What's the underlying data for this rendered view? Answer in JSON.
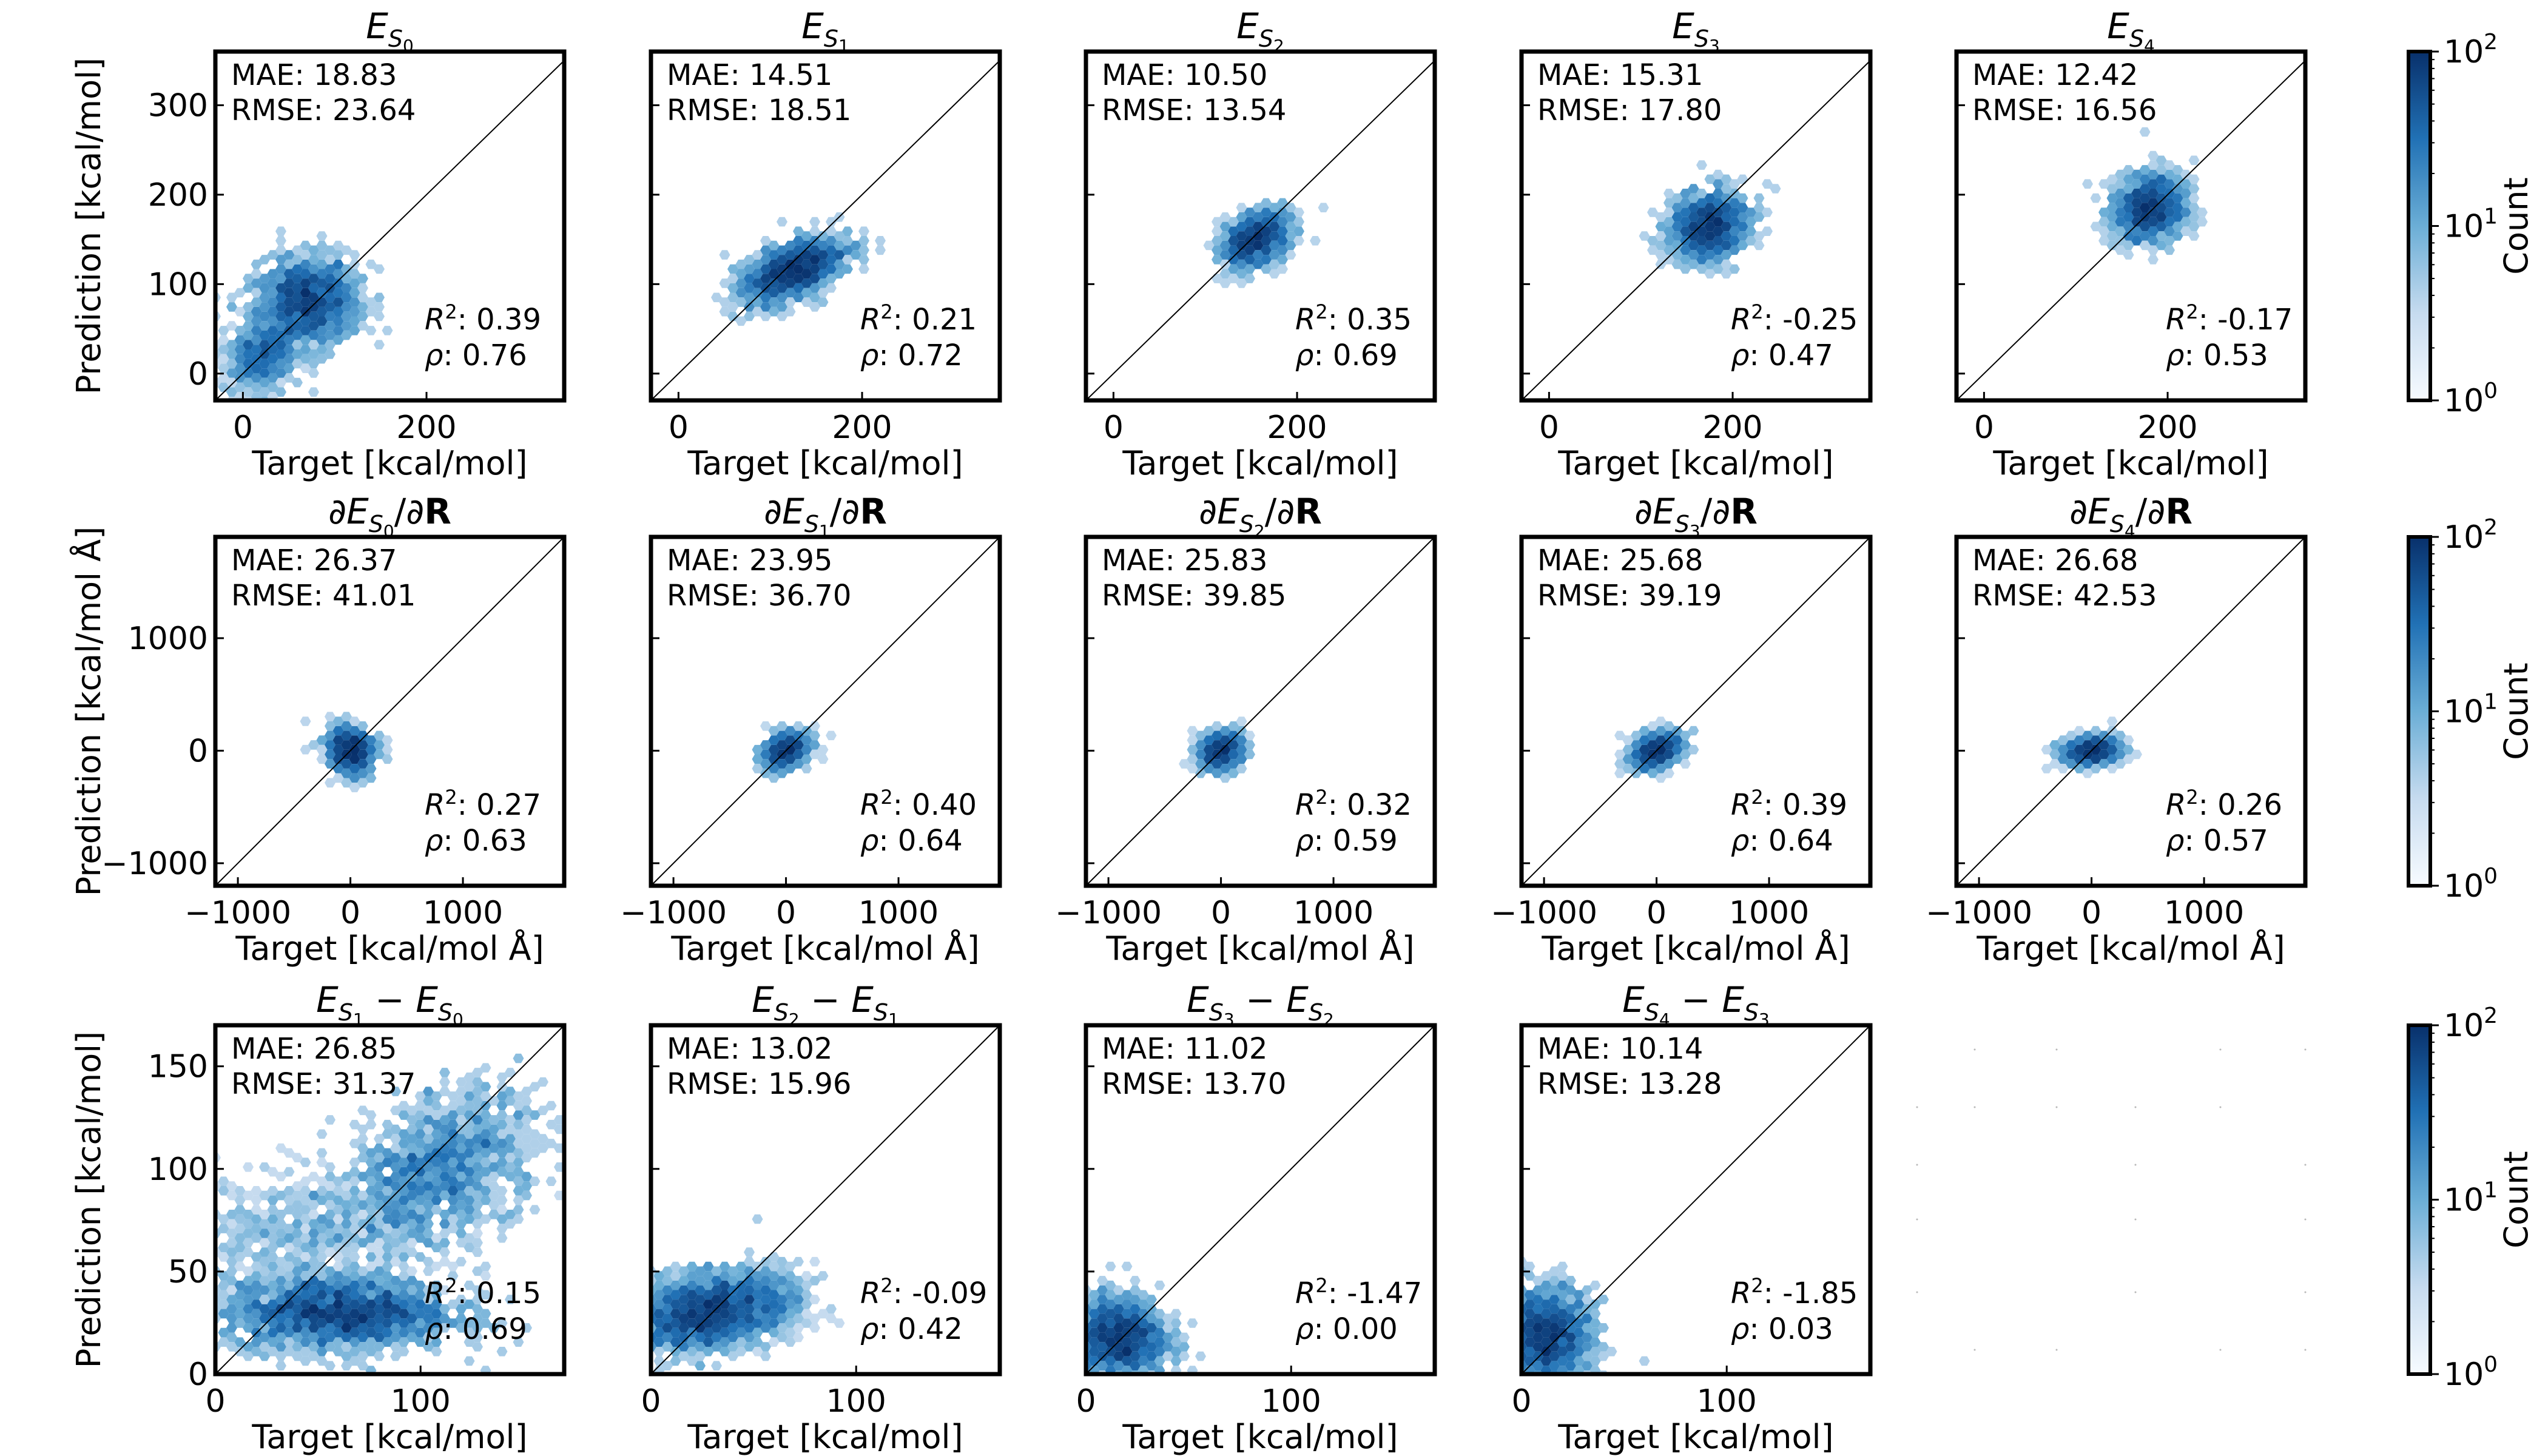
{
  "figure": {
    "colorbar_label": "Count",
    "colorbar_ticks": [
      "10",
      "10",
      "10"
    ],
    "colorbar_tick_exps": [
      "0",
      "1",
      "2"
    ],
    "colorbar_range": [
      1,
      100
    ],
    "colorbar_scale": "log",
    "colormap": [
      "#f7fbff",
      "#c6dbef",
      "#6baed6",
      "#2171b5",
      "#08306b"
    ],
    "hex_color": "#2171b5"
  },
  "rows": [
    {
      "xlabel": "Target [kcal/mol]",
      "ylabel": "Prediction [kcal/mol]",
      "xlim": [
        -30,
        350
      ],
      "ylim": [
        -30,
        360
      ],
      "xticks": [
        0,
        200
      ],
      "xtick_labels": [
        "0",
        "200"
      ],
      "yticks": [
        0,
        100,
        200,
        300
      ],
      "ytick_labels": [
        "0",
        "100",
        "200",
        "300"
      ]
    },
    {
      "xlabel": "Target [kcal/mol Å]",
      "ylabel": "Prediction [kcal/mol Å]",
      "xlim": [
        -1200,
        1900
      ],
      "ylim": [
        -1200,
        1900
      ],
      "xticks": [
        -1000,
        0,
        1000
      ],
      "xtick_labels": [
        "−1000",
        "0",
        "1000"
      ],
      "yticks": [
        -1000,
        0,
        1000
      ],
      "ytick_labels": [
        "−1000",
        "0",
        "1000"
      ]
    },
    {
      "xlabel": "Target [kcal/mol]",
      "ylabel": "Prediction [kcal/mol]",
      "xlim": [
        0,
        170
      ],
      "ylim": [
        0,
        170
      ],
      "xticks": [
        0,
        100
      ],
      "xtick_labels": [
        "0",
        "100"
      ],
      "yticks": [
        0,
        50,
        100,
        150
      ],
      "ytick_labels": [
        "0",
        "50",
        "100",
        "150"
      ]
    }
  ],
  "chart_data": [
    {
      "type": "heatmap",
      "row": 0,
      "col": 0,
      "title": "E_S0",
      "title_main": "E",
      "title_sub": "S",
      "title_subsub": "0",
      "title_pre": "",
      "title_post": "",
      "mae": "MAE: 18.83",
      "rmse": "RMSE: 23.64",
      "r2": ": 0.39",
      "rho": ": 0.76",
      "clusters": [
        {
          "cx": 70,
          "cy": 80,
          "sx": 28,
          "sy": 25,
          "rot": 0.2,
          "n": 90,
          "w": 1.0
        },
        {
          "cx": 20,
          "cy": 20,
          "sx": 22,
          "sy": 18,
          "rot": 0.8,
          "n": 50,
          "w": 0.6
        }
      ]
    },
    {
      "type": "heatmap",
      "row": 0,
      "col": 1,
      "title": "E_S1",
      "title_main": "E",
      "title_sub": "S",
      "title_subsub": "1",
      "title_pre": "",
      "title_post": "",
      "mae": "MAE: 14.51",
      "rmse": "RMSE: 18.51",
      "r2": ": 0.21",
      "rho": ": 0.72",
      "clusters": [
        {
          "cx": 125,
          "cy": 115,
          "sx": 30,
          "sy": 14,
          "rot": 0.45,
          "n": 90,
          "w": 1.0
        }
      ]
    },
    {
      "type": "heatmap",
      "row": 0,
      "col": 2,
      "title": "E_S2",
      "title_main": "E",
      "title_sub": "S",
      "title_subsub": "2",
      "title_pre": "",
      "title_post": "",
      "mae": "MAE: 10.50",
      "rmse": "RMSE: 13.54",
      "r2": ": 0.35",
      "rho": ": 0.69",
      "clusters": [
        {
          "cx": 155,
          "cy": 150,
          "sx": 20,
          "sy": 13,
          "rot": 0.6,
          "n": 80,
          "w": 1.0
        }
      ]
    },
    {
      "type": "heatmap",
      "row": 0,
      "col": 3,
      "title": "E_S3",
      "title_main": "E",
      "title_sub": "S",
      "title_subsub": "3",
      "title_pre": "",
      "title_post": "",
      "mae": "MAE: 15.31",
      "rmse": "RMSE: 17.80",
      "r2": ": -0.25",
      "rho": ": 0.47",
      "clusters": [
        {
          "cx": 175,
          "cy": 165,
          "sx": 22,
          "sy": 18,
          "rot": 0.5,
          "n": 80,
          "w": 1.0
        }
      ]
    },
    {
      "type": "heatmap",
      "row": 0,
      "col": 4,
      "title": "E_S4",
      "title_main": "E",
      "title_sub": "S",
      "title_subsub": "4",
      "title_pre": "",
      "title_post": "",
      "mae": "MAE: 12.42",
      "rmse": "RMSE: 16.56",
      "r2": ": -0.17",
      "rho": ": 0.53",
      "clusters": [
        {
          "cx": 180,
          "cy": 185,
          "sx": 20,
          "sy": 18,
          "rot": 0.5,
          "n": 80,
          "w": 1.0
        }
      ]
    },
    {
      "type": "heatmap",
      "row": 1,
      "col": 0,
      "title": "dE_S0/dR",
      "title_main": "E",
      "title_sub": "S",
      "title_subsub": "0",
      "title_pre": "∂",
      "title_post": "/∂",
      "title_bold": "R",
      "mae": "MAE: 26.37",
      "rmse": "RMSE: 41.01",
      "r2": ": 0.27",
      "rho": ": 0.63",
      "clusters": [
        {
          "cx": 0,
          "cy": 0,
          "sx": 90,
          "sy": 110,
          "rot": 0.6,
          "n": 80,
          "w": 1.0
        }
      ]
    },
    {
      "type": "heatmap",
      "row": 1,
      "col": 1,
      "title": "dE_S1/dR",
      "title_main": "E",
      "title_sub": "S",
      "title_subsub": "1",
      "title_pre": "∂",
      "title_post": "/∂",
      "title_bold": "R",
      "mae": "MAE: 23.95",
      "rmse": "RMSE: 36.70",
      "r2": ": 0.40",
      "rho": ": 0.64",
      "clusters": [
        {
          "cx": 0,
          "cy": 0,
          "sx": 100,
          "sy": 70,
          "rot": 0.5,
          "n": 80,
          "w": 1.0
        }
      ]
    },
    {
      "type": "heatmap",
      "row": 1,
      "col": 2,
      "title": "dE_S2/dR",
      "title_main": "E",
      "title_sub": "S",
      "title_subsub": "2",
      "title_pre": "∂",
      "title_post": "/∂",
      "title_bold": "R",
      "mae": "MAE: 25.83",
      "rmse": "RMSE: 39.85",
      "r2": ": 0.32",
      "rho": ": 0.59",
      "clusters": [
        {
          "cx": 0,
          "cy": 0,
          "sx": 100,
          "sy": 75,
          "rot": 0.5,
          "n": 80,
          "w": 1.0
        }
      ]
    },
    {
      "type": "heatmap",
      "row": 1,
      "col": 3,
      "title": "dE_S3/dR",
      "title_main": "E",
      "title_sub": "S",
      "title_subsub": "3",
      "title_pre": "∂",
      "title_post": "/∂",
      "title_bold": "R",
      "mae": "MAE: 25.68",
      "rmse": "RMSE: 39.19",
      "r2": ": 0.39",
      "rho": ": 0.64",
      "clusters": [
        {
          "cx": 0,
          "cy": 0,
          "sx": 110,
          "sy": 70,
          "rot": 0.4,
          "n": 80,
          "w": 1.0
        }
      ]
    },
    {
      "type": "heatmap",
      "row": 1,
      "col": 4,
      "title": "dE_S4/dR",
      "title_main": "E",
      "title_sub": "S",
      "title_subsub": "4",
      "title_pre": "∂",
      "title_post": "/∂",
      "title_bold": "R",
      "mae": "MAE: 26.68",
      "rmse": "RMSE: 42.53",
      "r2": ": 0.26",
      "rho": ": 0.57",
      "clusters": [
        {
          "cx": 0,
          "cy": 0,
          "sx": 120,
          "sy": 60,
          "rot": 0.1,
          "n": 80,
          "w": 1.0
        }
      ]
    },
    {
      "type": "heatmap",
      "row": 2,
      "col": 0,
      "title": "E_S1 - E_S0",
      "title_main": "E",
      "title_sub": "S",
      "title_subsub": "1",
      "title_minus": "E",
      "title_minus_subsub": "0",
      "mae": "MAE: 26.85",
      "rmse": "RMSE: 31.37",
      "r2": ": 0.15",
      "rho": ": 0.69",
      "clusters": [
        {
          "cx": 60,
          "cy": 30,
          "sx": 28,
          "sy": 9,
          "rot": 0,
          "n": 110,
          "w": 1.0
        },
        {
          "cx": 110,
          "cy": 100,
          "sx": 25,
          "sy": 16,
          "rot": 0.6,
          "n": 80,
          "w": 0.8
        },
        {
          "cx": 45,
          "cy": 70,
          "sx": 35,
          "sy": 14,
          "rot": 0.1,
          "n": 50,
          "w": 0.45
        }
      ]
    },
    {
      "type": "heatmap",
      "row": 2,
      "col": 1,
      "title": "E_S2 - E_S1",
      "title_main": "E",
      "title_sub": "S",
      "title_subsub": "2",
      "title_minus": "E",
      "title_minus_subsub": "1",
      "mae": "MAE: 13.02",
      "rmse": "RMSE: 15.96",
      "r2": ": -0.09",
      "rho": ": 0.42",
      "clusters": [
        {
          "cx": 25,
          "cy": 30,
          "sx": 18,
          "sy": 9,
          "rot": 0.15,
          "n": 100,
          "w": 1.0
        },
        {
          "cx": 55,
          "cy": 35,
          "sx": 12,
          "sy": 9,
          "rot": 0,
          "n": 30,
          "w": 0.5
        }
      ]
    },
    {
      "type": "heatmap",
      "row": 2,
      "col": 2,
      "title": "E_S3 - E_S2",
      "title_main": "E",
      "title_sub": "S",
      "title_subsub": "3",
      "title_minus": "E",
      "title_minus_subsub": "2",
      "mae": "MAE: 11.02",
      "rmse": "RMSE: 13.70",
      "r2": ": -1.47",
      "rho": ": 0.00",
      "clusters": [
        {
          "cx": 15,
          "cy": 18,
          "sx": 12,
          "sy": 10,
          "rot": 0,
          "n": 100,
          "w": 1.0
        }
      ]
    },
    {
      "type": "heatmap",
      "row": 2,
      "col": 3,
      "title": "E_S4 - E_S3",
      "title_main": "E",
      "title_sub": "S",
      "title_subsub": "4",
      "title_minus": "E",
      "title_minus_subsub": "3",
      "mae": "MAE: 10.14",
      "rmse": "RMSE: 13.28",
      "r2": ": -1.85",
      "rho": ": 0.03",
      "clusters": [
        {
          "cx": 12,
          "cy": 18,
          "sx": 11,
          "sy": 12,
          "rot": 0,
          "n": 100,
          "w": 1.0
        }
      ]
    }
  ]
}
